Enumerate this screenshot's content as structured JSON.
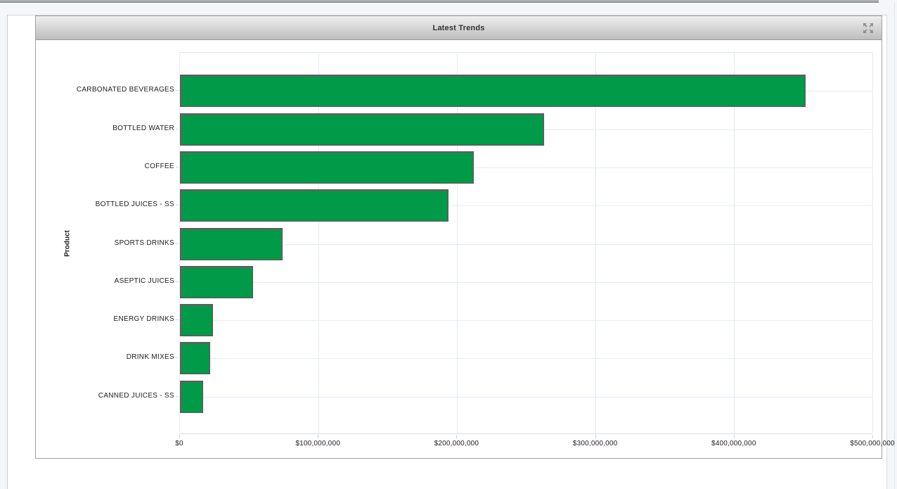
{
  "window": {
    "title": "Latest Trends",
    "icons": {
      "header_right": "expand-icon"
    },
    "accent_colors": {
      "titlebar_top": "#efefef",
      "titlebar_bottom": "#bdbdbd",
      "bar_fill": "#009a48",
      "bar_border": "#5e5e5e",
      "gridline": "#e2e9f4"
    }
  },
  "chart_data": {
    "type": "bar",
    "orientation": "horizontal",
    "title": "Latest Trends",
    "xlabel": "",
    "ylabel": "Product",
    "categories": [
      "CARBONATED BEVERAGES",
      "BOTTLED WATER",
      "COFFEE",
      "BOTTLED JUICES - SS",
      "SPORTS DRINKS",
      "ASEPTIC JUICES",
      "ENERGY DRINKS",
      "DRINK MIXES",
      "CANNED JUICES - SS"
    ],
    "values": [
      452000000,
      263000000,
      212000000,
      194000000,
      74000000,
      53000000,
      24000000,
      22000000,
      17000000
    ],
    "xlim": [
      0,
      500000000
    ],
    "x_tick_labels": [
      "$0",
      "$100,000,000",
      "$200,000,000",
      "$300,000,000",
      "$400,000,000",
      "$500,000,000"
    ],
    "grid": true,
    "legend": "none",
    "bar_color": "#009a48"
  }
}
